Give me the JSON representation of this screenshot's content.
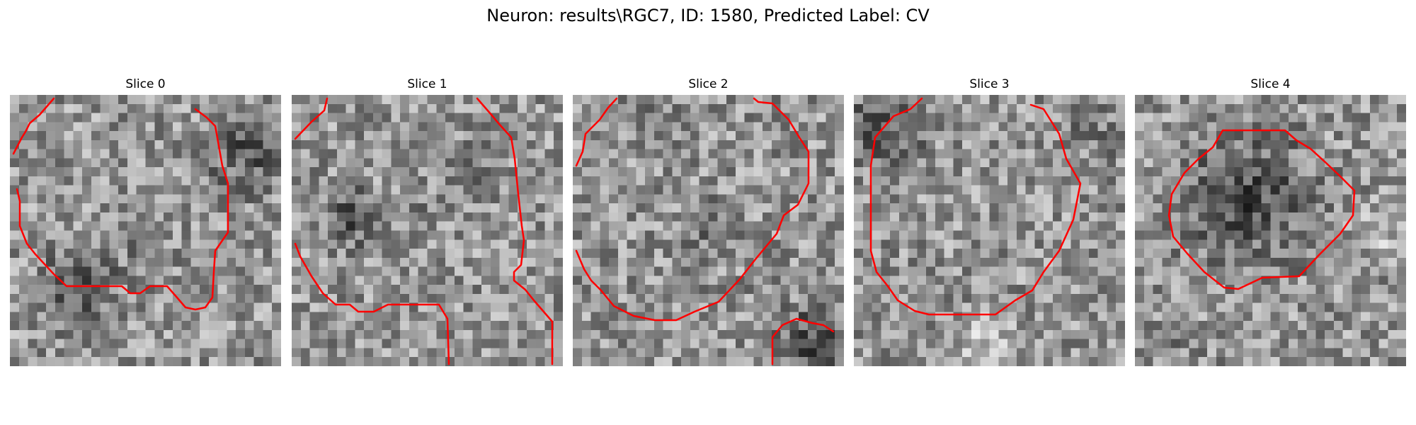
{
  "figure": {
    "title": "Neuron: results\\RGC7, ID: 1580, Predicted Label: CV",
    "contour_color": "#ff0000",
    "colormap": "gray"
  },
  "panels": [
    {
      "title": "Slice 0",
      "dark_regions": [
        "top-right edge",
        "bottom-left"
      ]
    },
    {
      "title": "Slice 1",
      "dark_regions": [
        "center-left"
      ]
    },
    {
      "title": "Slice 2",
      "dark_regions": [
        "bottom-right corner"
      ]
    },
    {
      "title": "Slice 3",
      "dark_regions": [
        "top-left corner"
      ]
    },
    {
      "title": "Slice 4",
      "dark_regions": [
        "center blob"
      ]
    }
  ]
}
